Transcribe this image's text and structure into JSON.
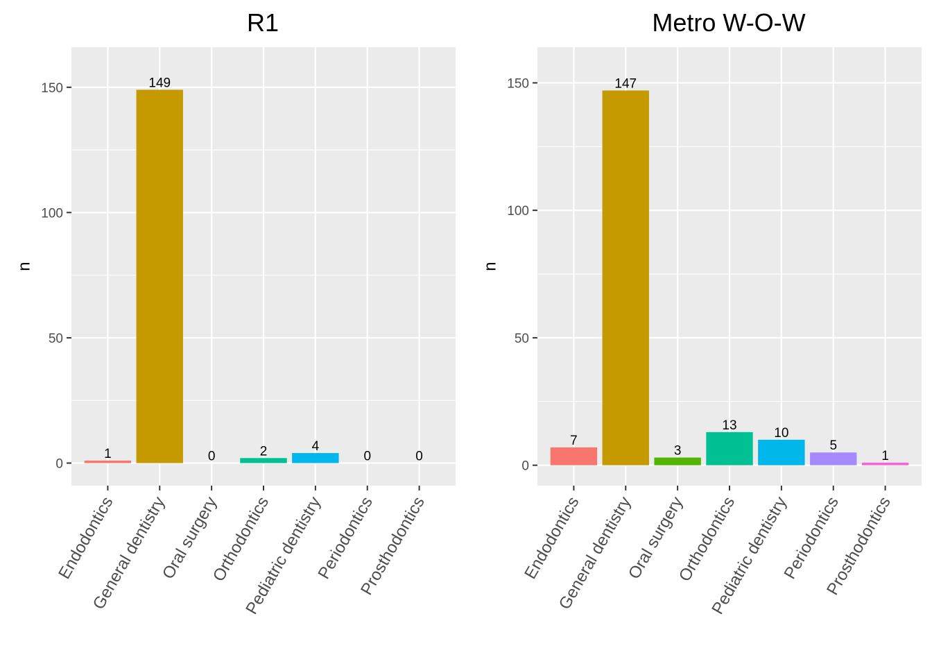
{
  "palette": [
    "#F8766D",
    "#C49A00",
    "#53B400",
    "#00C094",
    "#00B6EB",
    "#A58AFF",
    "#FB61D7"
  ],
  "panel_bg": "#EBEBEB",
  "grid_color": "#FFFFFF",
  "chart_data": [
    {
      "type": "bar",
      "title": "R1",
      "xlabel": "",
      "ylabel": "n",
      "categories": [
        "Endodontics",
        "General dentistry",
        "Oral surgery",
        "Orthodontics",
        "Pediatric dentistry",
        "Periodontics",
        "Prosthodontics"
      ],
      "values": [
        1,
        149,
        0,
        2,
        4,
        0,
        0
      ],
      "data_labels": [
        "1",
        "149",
        "0",
        "2",
        "4",
        "0",
        "0"
      ],
      "ylim": [
        -9,
        166
      ],
      "y_ticks": [
        0,
        50,
        100,
        150
      ],
      "y_tick_labels": [
        "0",
        "50",
        "100",
        "150"
      ],
      "grid": true,
      "legend": "none"
    },
    {
      "type": "bar",
      "title": "Metro W-O-W",
      "xlabel": "",
      "ylabel": "n",
      "categories": [
        "Endodontics",
        "General dentistry",
        "Oral surgery",
        "Orthodontics",
        "Pediatric dentistry",
        "Periodontics",
        "Prosthodontics"
      ],
      "values": [
        7,
        147,
        3,
        13,
        10,
        5,
        1
      ],
      "data_labels": [
        "7",
        "147",
        "3",
        "13",
        "10",
        "5",
        "1"
      ],
      "ylim": [
        -8,
        164
      ],
      "y_ticks": [
        0,
        50,
        100,
        150
      ],
      "y_tick_labels": [
        "0",
        "50",
        "100",
        "150"
      ],
      "grid": true,
      "legend": "none"
    }
  ]
}
